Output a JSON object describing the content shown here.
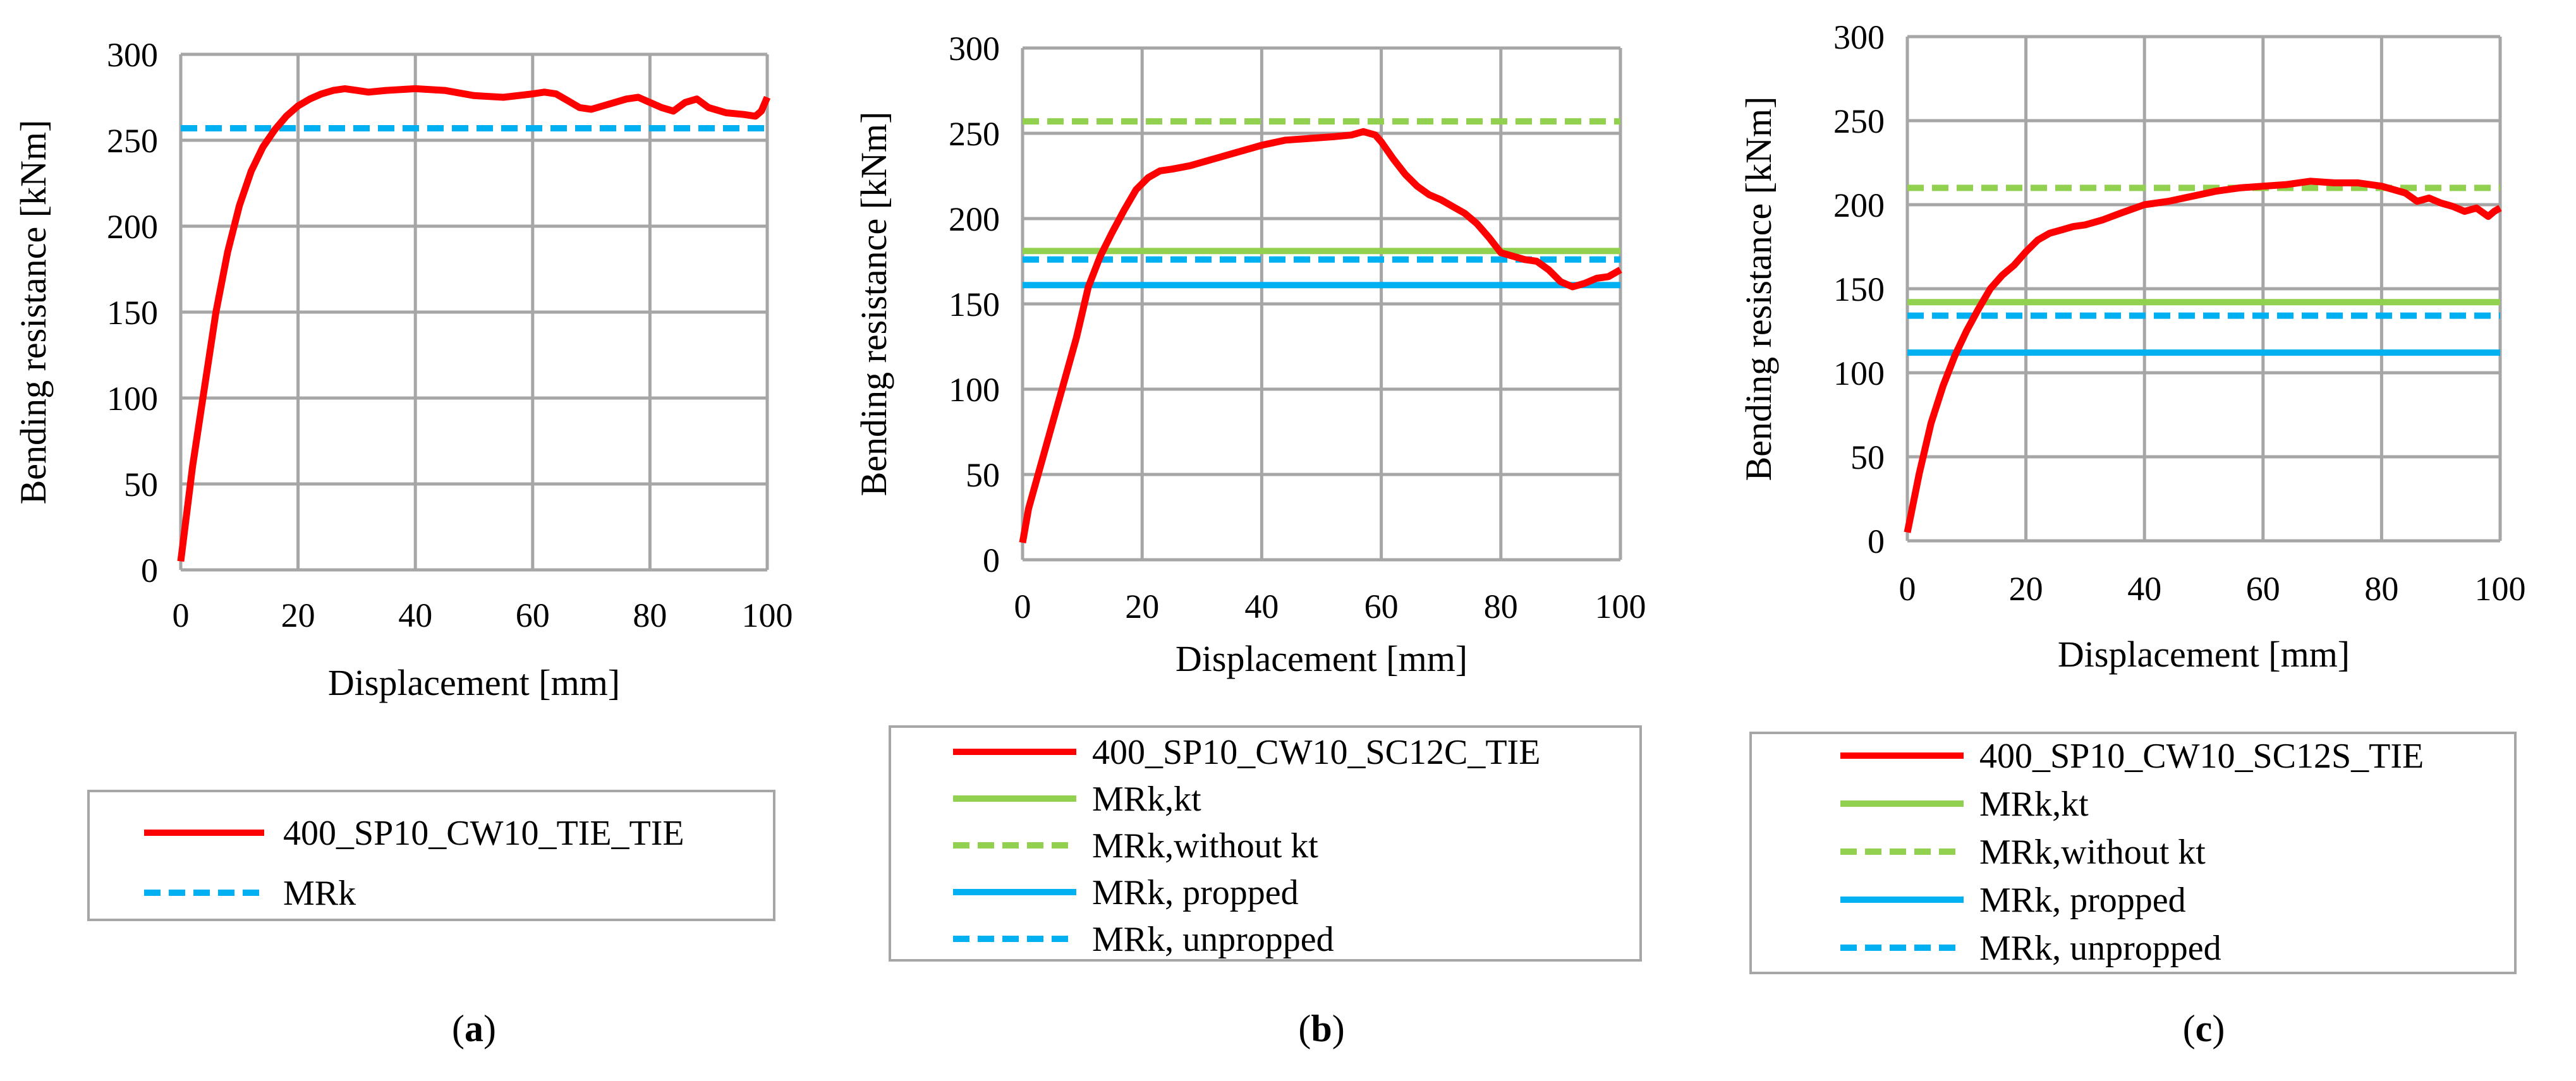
{
  "colors": {
    "red": "#ff0000",
    "green": "#92d050",
    "blue": "#00b0f0",
    "grid": "#a6a6a6"
  },
  "chart_data": [
    {
      "type": "line",
      "panel": "a",
      "caption": "a",
      "xlabel": "Displacement [mm]",
      "ylabel": "Bending resistance [kNm]",
      "xlim": [
        0,
        100
      ],
      "ylim": [
        0,
        300
      ],
      "x_ticks": [
        0,
        20,
        40,
        60,
        80,
        100
      ],
      "y_ticks": [
        0,
        50,
        100,
        150,
        200,
        250,
        300
      ],
      "grid": true,
      "legend_position": "below",
      "series": [
        {
          "name": "400_SP10_CW10_TIE_TIE",
          "color": "#ff0000",
          "style": "solid",
          "x": [
            0,
            2,
            4,
            6,
            8,
            10,
            12,
            14,
            16,
            18,
            20,
            22,
            24,
            26,
            28,
            30,
            32,
            35,
            40,
            45,
            50,
            55,
            60,
            62,
            64,
            66,
            68,
            70,
            73,
            76,
            78,
            80,
            82,
            84,
            86,
            88,
            90,
            93,
            96,
            98,
            99,
            100
          ],
          "y": [
            5,
            60,
            105,
            150,
            185,
            212,
            232,
            246,
            256,
            264,
            270,
            274,
            277,
            279,
            280,
            279,
            278,
            279,
            280,
            279,
            276,
            275,
            277,
            278,
            277,
            273,
            269,
            268,
            271,
            274,
            275,
            272,
            269,
            267,
            272,
            274,
            269,
            266,
            265,
            264,
            267,
            275
          ]
        },
        {
          "name": "MRk",
          "color": "#00b0f0",
          "style": "dashed",
          "x": [
            0,
            100
          ],
          "y": [
            257,
            257
          ]
        }
      ]
    },
    {
      "type": "line",
      "panel": "b",
      "caption": "b",
      "xlabel": "Displacement [mm]",
      "ylabel": "Bending resistance [kNm]",
      "xlim": [
        0,
        100
      ],
      "ylim": [
        0,
        300
      ],
      "x_ticks": [
        0,
        20,
        40,
        60,
        80,
        100
      ],
      "y_ticks": [
        0,
        50,
        100,
        150,
        200,
        250,
        300
      ],
      "grid": true,
      "legend_position": "below",
      "series": [
        {
          "name": "400_SP10_CW10_SC12C_TIE",
          "color": "#ff0000",
          "style": "solid",
          "x": [
            0,
            1,
            3,
            5,
            7,
            9,
            11,
            13,
            15,
            17,
            19,
            21,
            23,
            25,
            28,
            32,
            36,
            40,
            44,
            48,
            52,
            55,
            57,
            59,
            60,
            62,
            64,
            66,
            68,
            70,
            72,
            74,
            76,
            78,
            80,
            82,
            84,
            86,
            88,
            90,
            92,
            94,
            96,
            98,
            100
          ],
          "y": [
            10,
            30,
            55,
            80,
            105,
            130,
            160,
            178,
            192,
            205,
            217,
            224,
            228,
            229,
            231,
            235,
            239,
            243,
            246,
            247,
            248,
            249,
            251,
            249,
            245,
            235,
            226,
            219,
            214,
            211,
            207,
            203,
            197,
            189,
            180,
            178,
            176,
            175,
            170,
            163,
            160,
            162,
            165,
            166,
            170
          ]
        },
        {
          "name": "MRk,kt",
          "color": "#92d050",
          "style": "solid",
          "x": [
            0,
            100
          ],
          "y": [
            181,
            181
          ]
        },
        {
          "name": "MRk,without kt",
          "color": "#92d050",
          "style": "dashed",
          "x": [
            0,
            100
          ],
          "y": [
            257,
            257
          ]
        },
        {
          "name": "MRk, propped",
          "color": "#00b0f0",
          "style": "solid",
          "x": [
            0,
            100
          ],
          "y": [
            161,
            161
          ]
        },
        {
          "name": "MRk, unpropped",
          "color": "#00b0f0",
          "style": "dashed",
          "x": [
            0,
            100
          ],
          "y": [
            176,
            176
          ]
        }
      ]
    },
    {
      "type": "line",
      "panel": "c",
      "caption": "c",
      "xlabel": "Displacement [mm]",
      "ylabel": "Bending resistance [kNm]",
      "xlim": [
        0,
        100
      ],
      "ylim": [
        0,
        300
      ],
      "x_ticks": [
        0,
        20,
        40,
        60,
        80,
        100
      ],
      "y_ticks": [
        0,
        50,
        100,
        150,
        200,
        250,
        300
      ],
      "grid": true,
      "legend_position": "below",
      "series": [
        {
          "name": "400_SP10_CW10_SC12S_TIE",
          "color": "#ff0000",
          "style": "solid",
          "x": [
            0,
            2,
            4,
            6,
            8,
            10,
            12,
            14,
            16,
            18,
            20,
            22,
            24,
            26,
            28,
            30,
            33,
            36,
            40,
            44,
            48,
            52,
            56,
            60,
            64,
            68,
            72,
            76,
            80,
            84,
            86,
            88,
            90,
            92,
            94,
            96,
            98,
            99,
            100
          ],
          "y": [
            5,
            40,
            70,
            92,
            110,
            125,
            138,
            150,
            158,
            164,
            172,
            179,
            183,
            185,
            187,
            188,
            191,
            195,
            200,
            202,
            205,
            208,
            210,
            211,
            212,
            214,
            213,
            213,
            211,
            207,
            202,
            204,
            201,
            199,
            196,
            198,
            193,
            196,
            198
          ]
        },
        {
          "name": "MRk,kt",
          "color": "#92d050",
          "style": "solid",
          "x": [
            0,
            100
          ],
          "y": [
            142,
            142
          ]
        },
        {
          "name": "MRk,without kt",
          "color": "#92d050",
          "style": "dashed",
          "x": [
            0,
            100
          ],
          "y": [
            210,
            210
          ]
        },
        {
          "name": "MRk, propped",
          "color": "#00b0f0",
          "style": "solid",
          "x": [
            0,
            100
          ],
          "y": [
            112,
            112
          ]
        },
        {
          "name": "MRk, unpropped",
          "color": "#00b0f0",
          "style": "dashed",
          "x": [
            0,
            100
          ],
          "y": [
            134,
            134
          ]
        }
      ]
    }
  ]
}
